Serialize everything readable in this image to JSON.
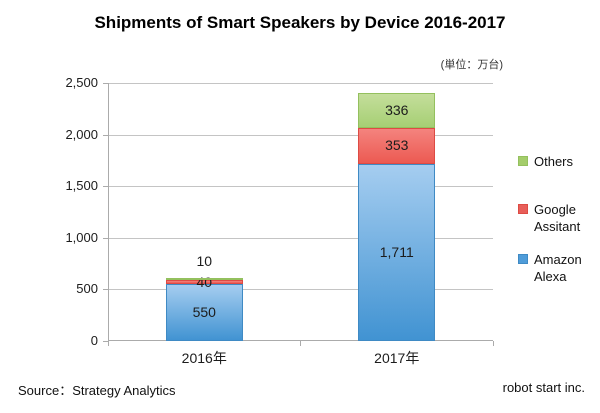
{
  "title": "Shipments of Smart Speakers by Device 2016-2017",
  "unit_label": "(単位：万台)",
  "footer": {
    "source": "Source：Strategy Analytics",
    "credit": "robot start inc."
  },
  "chart_data": {
    "type": "bar",
    "stacked": true,
    "title": "Shipments of Smart Speakers by Device 2016-2017",
    "categories": [
      "2016年",
      "2017年"
    ],
    "series": [
      {
        "id": "amazon-alexa",
        "name": "Amazon Alexa",
        "values": [
          550,
          1711
        ],
        "fill_light": "#A5CDF0",
        "fill_dark": "#4193D2",
        "border": "#3F8AC4",
        "legend_color": "#4F9CD9"
      },
      {
        "id": "google-assitant",
        "name": "Google Assitant",
        "values": [
          40,
          353
        ],
        "fill_light": "#F4837E",
        "fill_dark": "#EC5A52",
        "border": "#DD4B44",
        "legend_color": "#E85E59"
      },
      {
        "id": "others",
        "name": "Others",
        "values": [
          10,
          336
        ],
        "fill_light": "#C4DE9B",
        "fill_dark": "#A6CF74",
        "border": "#94C05E",
        "legend_color": "#A4CD6B"
      }
    ],
    "ylim": [
      0,
      2500
    ],
    "yticks": [
      0,
      500,
      1000,
      1500,
      2000,
      2500
    ],
    "grid": true,
    "legend_position": "right",
    "unit": "万台",
    "xlabel": "",
    "ylabel": ""
  }
}
